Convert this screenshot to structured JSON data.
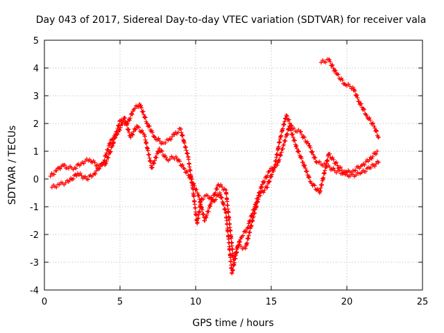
{
  "chart_data": {
    "type": "scatter",
    "title": "Day 043 of 2017, Sidereal Day-to-day VTEC variation (SDTVAR) for receiver vala",
    "xlabel": "GPS time / hours",
    "ylabel": "SDTVAR / TECUs",
    "xlim": [
      0,
      25
    ],
    "ylim": [
      -4,
      5
    ],
    "xticks": [
      "0",
      "5",
      "10",
      "15",
      "20",
      "25"
    ],
    "yticks": [
      "-4",
      "-3",
      "-2",
      "-1",
      "0",
      "1",
      "2",
      "3",
      "4",
      "5"
    ],
    "grid": true,
    "marker": "+",
    "colors": {
      "series": "#ff0000",
      "grid": "#a0a0a0",
      "axis": "#000000"
    },
    "series": [
      {
        "x": [
          0.4,
          0.8,
          1.2,
          1.5,
          2.0,
          2.5,
          3.0,
          3.5,
          4.0,
          4.5,
          5.0,
          5.5,
          5.9,
          6.3,
          6.8,
          7.3,
          7.8,
          8.2,
          8.6,
          9.0,
          9.5,
          9.8,
          10.1,
          10.4,
          10.8,
          11.2,
          11.6,
          12.0,
          12.4,
          12.8,
          13.3,
          13.8,
          14.2,
          14.7,
          15.2,
          15.6,
          16.0,
          16.4,
          16.9,
          17.5,
          18.0,
          18.6,
          19.2,
          19.8,
          20.4,
          21.0,
          21.5,
          22.0
        ],
        "y": [
          0.1,
          0.3,
          0.5,
          0.4,
          0.4,
          0.6,
          0.7,
          0.5,
          0.5,
          1.2,
          2.1,
          2.0,
          2.5,
          2.7,
          2.0,
          1.5,
          1.3,
          1.4,
          1.6,
          1.8,
          0.8,
          -0.3,
          -1.6,
          -0.7,
          -0.6,
          -0.8,
          -0.5,
          -1.2,
          -3.4,
          -2.4,
          -2.5,
          -1.4,
          -0.6,
          -0.3,
          0.4,
          1.5,
          2.3,
          1.8,
          1.7,
          1.2,
          0.6,
          0.5,
          0.3,
          0.2,
          0.3,
          0.5,
          0.7,
          1.0
        ]
      },
      {
        "x": [
          0.5,
          1.0,
          1.6,
          2.2,
          2.8,
          3.3,
          3.9,
          4.4,
          4.9,
          5.3,
          5.7,
          6.1,
          6.6,
          7.1,
          7.6,
          8.1,
          8.7,
          9.2,
          9.7,
          10.2,
          10.6,
          11.0,
          11.5,
          12.0,
          12.5,
          13.0,
          13.4,
          13.9,
          14.4,
          14.9,
          15.4,
          15.8,
          16.2,
          16.7,
          17.1,
          17.6,
          18.2,
          18.8,
          19.5,
          20.2,
          20.9,
          21.5,
          22.1
        ],
        "y": [
          -0.3,
          -0.2,
          -0.1,
          0.2,
          0.0,
          0.2,
          0.6,
          1.4,
          1.7,
          2.2,
          1.5,
          1.9,
          1.6,
          0.4,
          1.1,
          0.7,
          0.8,
          0.4,
          0.0,
          -0.6,
          -1.5,
          -0.9,
          -0.2,
          -0.4,
          -2.9,
          -2.1,
          -1.8,
          -1.0,
          -0.2,
          0.3,
          0.5,
          1.2,
          1.9,
          1.1,
          0.6,
          -0.1,
          -0.5,
          0.9,
          0.4,
          0.1,
          0.2,
          0.4,
          0.6
        ]
      },
      {
        "x": [
          18.3,
          18.8,
          19.3,
          19.9,
          20.4,
          20.8,
          21.3,
          21.8,
          22.1
        ],
        "y": [
          4.2,
          4.3,
          3.8,
          3.4,
          3.3,
          2.8,
          2.3,
          1.9,
          1.5
        ]
      }
    ]
  }
}
